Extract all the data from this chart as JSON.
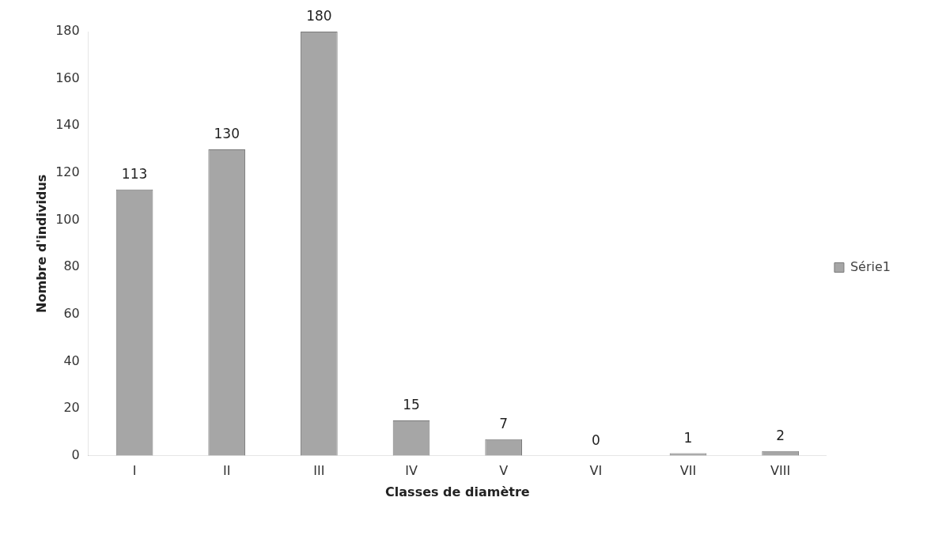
{
  "chart_data": {
    "type": "bar",
    "xlabel": "Classes de diamètre",
    "ylabel": "Nombre d'individus",
    "categories": [
      "I",
      "II",
      "III",
      "IV",
      "V",
      "VI",
      "VII",
      "VIII"
    ],
    "series": [
      {
        "name": "Série1",
        "color": "#a6a6a6",
        "values": [
          113,
          130,
          180,
          15,
          7,
          0,
          1,
          2
        ]
      }
    ],
    "ylim": [
      0,
      180
    ],
    "yticks": [
      0,
      20,
      40,
      60,
      80,
      100,
      120,
      140,
      160,
      180
    ],
    "data_labels": true,
    "grid": false,
    "legend": "right"
  }
}
